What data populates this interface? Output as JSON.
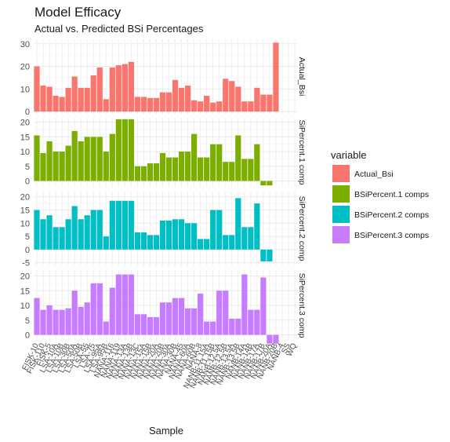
{
  "chart_data": {
    "type": "bar",
    "title": "Model Efficacy",
    "subtitle": "Actual vs. Predicted BSi Percentages",
    "xlabel": "Sample",
    "legend_title": "variable",
    "legend_position": "right",
    "grid": true,
    "categories": [
      "FISK-10",
      "FISK-110",
      "FISK-5",
      "LSA-10A",
      "LSA-10B",
      "LSA-30B",
      "LSA-50A",
      "LSA-50B",
      "LSA-55",
      "LSA-75",
      "LSA-95A",
      "LSA-95B",
      "NANA-116",
      "NANA-119",
      "NANA-13A",
      "NANA-13B",
      "NANA-13C",
      "NANA-15A",
      "NANA-15B",
      "NANA-20A",
      "NANA-20B",
      "NANA-30A",
      "NANA-30B",
      "NANA-45",
      "NANA-60A",
      "NANA-60B",
      "NANA-8",
      "NANB-11.15A",
      "NANB-11.15B",
      "NANB-12.5A",
      "NANB-12.5B",
      "NANB-13.5A",
      "NANB-13.5B",
      "NANB-14A",
      "NANB-14B",
      "NANB-17A",
      "NANB-17B",
      "NANB-20A",
      "NANB-20B",
      "NANB-4",
      "SS",
      "WQ"
    ],
    "tick_labels": [
      "FISK-10",
      "FISK-110",
      "FISK-5",
      "LSA-10A",
      "LSA-10B",
      "LSA-30B",
      "LSA-50A",
      "LSA-50B",
      "LSA-55",
      "LSA-75",
      "LSA-95A",
      "LSA-95B",
      "NANA-116",
      "NANA-119",
      "NANA-13A",
      "NANA-13B",
      "NANA-13C",
      "NANA-15A",
      "NANA-15B",
      "NANA-20A",
      "NANA-20B",
      "NANA-30A",
      "NANA-30B",
      "NANA-45",
      "NANA-60A",
      "NANA-60B",
      "NANA-8",
      "NANB-11.15A",
      "NANB-11.15B",
      "NANB-12.5A",
      "NANB-12.5B",
      "NANB-13.5A",
      "NANB-13.5B",
      "NANB-14A",
      "NANB-14B",
      "NANB-17A",
      "NANB-17B",
      "NANB-20A",
      "NANB-20B",
      "NANB-4",
      "SS",
      "WQ"
    ],
    "series": [
      {
        "name": "Actual_Bsi",
        "strip": "Actual_Bsi",
        "color": "#F8766D",
        "ylim": [
          -1,
          32
        ],
        "yticks": [
          0,
          10,
          20,
          30
        ],
        "values": [
          20,
          11.5,
          11,
          7,
          6.5,
          10.5,
          15.5,
          10.5,
          10.5,
          16,
          19.5,
          5.5,
          19.5,
          20.5,
          21,
          22,
          6.5,
          6.5,
          6,
          6,
          8.5,
          8.5,
          14,
          10.5,
          11.5,
          5,
          4.5,
          7,
          4,
          4.5,
          14.5,
          13.5,
          11,
          4.5,
          4.5,
          10.5,
          7.5,
          7.5,
          30.5,
          null,
          null,
          null
        ]
      },
      {
        "name": "BSiPercent.1 comps",
        "strip": "SiPercent.1 comp",
        "color": "#7CAE00",
        "ylim": [
          -2,
          21.5
        ],
        "yticks": [
          0,
          5,
          10,
          15,
          20
        ],
        "values": [
          15.5,
          9.5,
          13.5,
          10,
          10,
          12,
          17,
          13.5,
          15,
          15,
          15,
          10,
          16,
          21,
          21,
          21,
          5,
          5,
          6,
          6,
          9.5,
          8,
          8,
          10,
          10,
          16,
          8,
          8,
          12.5,
          12.5,
          6.5,
          6.5,
          15.5,
          7.5,
          7.5,
          12.5,
          -1.5,
          -1.5,
          null,
          null,
          null,
          null
        ]
      },
      {
        "name": "BSiPercent.2 comps",
        "strip": "SiPercent.2 comp",
        "color": "#00BFC4",
        "ylim": [
          -6,
          22
        ],
        "yticks": [
          -5,
          0,
          5,
          10,
          15,
          20
        ],
        "values": [
          15,
          11.5,
          13,
          8.5,
          8.5,
          11.5,
          16.5,
          11.5,
          13,
          15,
          15,
          5,
          18.5,
          18.5,
          18.5,
          18.5,
          6.5,
          6.5,
          5.5,
          5.5,
          11,
          11,
          11.5,
          11.5,
          10,
          10,
          4,
          4,
          15,
          15,
          5.5,
          5.5,
          19.5,
          8.5,
          8.5,
          17.5,
          -4.5,
          -4.5,
          null,
          null,
          null,
          null
        ]
      },
      {
        "name": "BSiPercent.3 comps",
        "strip": "SiPercent.3 comp",
        "color": "#C77CFF",
        "ylim": [
          -2,
          22
        ],
        "yticks": [
          0,
          5,
          10,
          15,
          20
        ],
        "values": [
          12.5,
          8.5,
          10,
          8.5,
          8.5,
          9,
          15,
          9.5,
          11,
          17.5,
          17.5,
          4.5,
          16,
          20.5,
          20.5,
          20.5,
          7,
          7,
          6,
          6,
          11,
          11,
          12.5,
          12.5,
          9,
          9,
          14,
          4.5,
          4.5,
          15,
          15,
          5.5,
          5.5,
          20.5,
          8.5,
          8.5,
          19.5,
          -3,
          -3,
          null,
          null,
          null
        ]
      }
    ]
  }
}
